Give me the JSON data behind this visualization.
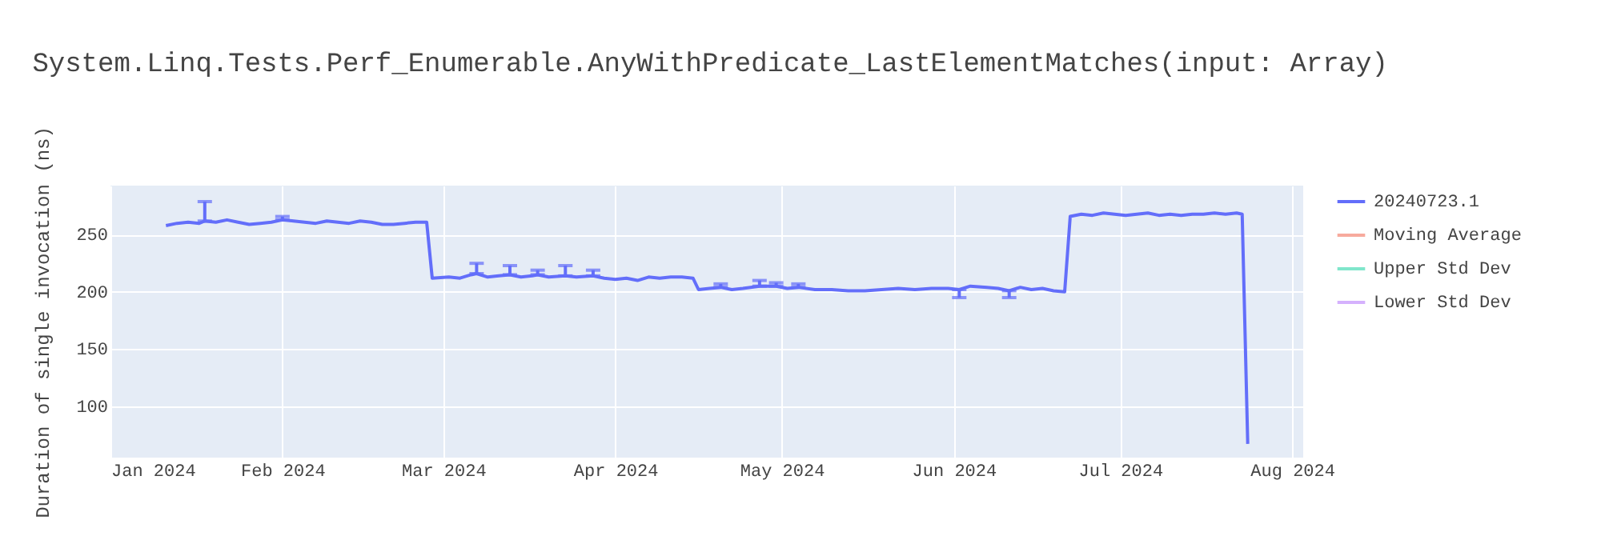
{
  "chart_data": {
    "type": "line",
    "title": "System.Linq.Tests.Perf_Enumerable.AnyWithPredicate_LastElementMatches(input: Array)",
    "ylabel": "Duration of single invocation (ns)",
    "xlim": [
      "2024-01-01",
      "2024-08-03"
    ],
    "xticks": [
      {
        "value": "2024-01-01",
        "label": "Jan 2024"
      },
      {
        "value": "2024-02-01",
        "label": "Feb 2024"
      },
      {
        "value": "2024-03-01",
        "label": "Mar 2024"
      },
      {
        "value": "2024-04-01",
        "label": "Apr 2024"
      },
      {
        "value": "2024-05-01",
        "label": "May 2024"
      },
      {
        "value": "2024-06-01",
        "label": "Jun 2024"
      },
      {
        "value": "2024-07-01",
        "label": "Jul 2024"
      },
      {
        "value": "2024-08-01",
        "label": "Aug 2024"
      }
    ],
    "ylim": [
      55,
      293
    ],
    "yticks": [
      100,
      150,
      200,
      250
    ],
    "grid": true,
    "legend": "top right",
    "marker": "none",
    "line_style": "solid",
    "x": [
      "2024-01-11",
      "2024-01-13",
      "2024-01-15",
      "2024-01-17",
      "2024-01-18",
      "2024-01-20",
      "2024-01-22",
      "2024-01-24",
      "2024-01-26",
      "2024-01-28",
      "2024-01-30",
      "2024-02-01",
      "2024-02-03",
      "2024-02-05",
      "2024-02-07",
      "2024-02-09",
      "2024-02-11",
      "2024-02-13",
      "2024-02-15",
      "2024-02-17",
      "2024-02-19",
      "2024-02-21",
      "2024-02-23",
      "2024-02-25",
      "2024-02-27",
      "2024-02-28",
      "2024-03-02",
      "2024-03-04",
      "2024-03-06",
      "2024-03-07",
      "2024-03-09",
      "2024-03-11",
      "2024-03-13",
      "2024-03-15",
      "2024-03-17",
      "2024-03-18",
      "2024-03-20",
      "2024-03-23",
      "2024-03-25",
      "2024-03-28",
      "2024-03-30",
      "2024-04-01",
      "2024-04-03",
      "2024-04-05",
      "2024-04-07",
      "2024-04-09",
      "2024-04-11",
      "2024-04-13",
      "2024-04-15",
      "2024-04-16",
      "2024-04-18",
      "2024-04-20",
      "2024-04-22",
      "2024-04-24",
      "2024-04-27",
      "2024-04-30",
      "2024-05-02",
      "2024-05-04",
      "2024-05-07",
      "2024-05-10",
      "2024-05-13",
      "2024-05-16",
      "2024-05-19",
      "2024-05-22",
      "2024-05-25",
      "2024-05-28",
      "2024-05-31",
      "2024-06-02",
      "2024-06-04",
      "2024-06-07",
      "2024-06-09",
      "2024-06-11",
      "2024-06-13",
      "2024-06-15",
      "2024-06-17",
      "2024-06-19",
      "2024-06-21",
      "2024-06-22",
      "2024-06-24",
      "2024-06-26",
      "2024-06-28",
      "2024-06-30",
      "2024-07-02",
      "2024-07-04",
      "2024-07-06",
      "2024-07-08",
      "2024-07-10",
      "2024-07-12",
      "2024-07-14",
      "2024-07-16",
      "2024-07-18",
      "2024-07-20",
      "2024-07-22",
      "2024-07-23",
      "2024-07-24"
    ],
    "series": [
      {
        "name": "20240723.1",
        "color": "#636efa",
        "values": [
          258,
          260,
          261,
          260,
          262,
          261,
          263,
          261,
          259,
          260,
          261,
          263,
          262,
          261,
          260,
          262,
          261,
          260,
          262,
          261,
          259,
          259,
          260,
          261,
          261,
          212,
          213,
          212,
          215,
          216,
          213,
          214,
          215,
          213,
          214,
          215,
          213,
          214,
          213,
          214,
          212,
          211,
          212,
          210,
          213,
          212,
          213,
          213,
          212,
          202,
          203,
          204,
          202,
          203,
          205,
          205,
          203,
          204,
          202,
          202,
          201,
          201,
          202,
          203,
          202,
          203,
          203,
          202,
          205,
          204,
          203,
          201,
          204,
          202,
          203,
          201,
          200,
          266,
          268,
          267,
          269,
          268,
          267,
          268,
          269,
          267,
          268,
          267,
          268,
          268,
          269,
          268,
          269,
          268,
          67
        ],
        "errors": [
          null,
          null,
          null,
          null,
          [
            262,
            279
          ],
          null,
          null,
          null,
          null,
          null,
          null,
          [
            263,
            266
          ],
          null,
          null,
          null,
          null,
          null,
          null,
          null,
          null,
          null,
          null,
          null,
          null,
          null,
          null,
          null,
          null,
          null,
          [
            216,
            225
          ],
          null,
          null,
          [
            215,
            223
          ],
          null,
          null,
          [
            215,
            219
          ],
          null,
          [
            214,
            223
          ],
          null,
          [
            214,
            219
          ],
          null,
          null,
          null,
          null,
          null,
          null,
          null,
          null,
          null,
          null,
          null,
          [
            204,
            207
          ],
          null,
          null,
          [
            205,
            210
          ],
          [
            205,
            208
          ],
          null,
          [
            204,
            207
          ],
          null,
          null,
          null,
          null,
          null,
          null,
          null,
          null,
          null,
          [
            195,
            202
          ],
          null,
          null,
          null,
          [
            195,
            201
          ],
          null,
          null,
          null,
          null,
          null,
          null,
          null,
          null,
          null,
          null,
          null,
          null,
          null,
          null,
          null,
          null,
          null,
          null,
          null,
          null,
          null,
          null,
          null
        ]
      },
      {
        "name": "Moving Average",
        "color": "#f7aa9d",
        "values": [
          null,
          null,
          null,
          null,
          null,
          null,
          null,
          null,
          null,
          null,
          null,
          null,
          null,
          null,
          null,
          null,
          null,
          null,
          null,
          null,
          null,
          null,
          null,
          null,
          null,
          null,
          null,
          null,
          null,
          null,
          null,
          null,
          null,
          null,
          null,
          null,
          null,
          null,
          null,
          null,
          null,
          null,
          null,
          null,
          null,
          null,
          null,
          null,
          null,
          null,
          null,
          null,
          null,
          null,
          null,
          null,
          null,
          null,
          null,
          null,
          null,
          null,
          null,
          null,
          null,
          null,
          null,
          null,
          null,
          null,
          null,
          null,
          null,
          null,
          null,
          null,
          null,
          null,
          null,
          null,
          null,
          null,
          null,
          null,
          null,
          null,
          null,
          null,
          null,
          null,
          null,
          null,
          null,
          null,
          null
        ]
      },
      {
        "name": "Upper Std Dev",
        "color": "#80e6cb",
        "values": [
          null,
          null,
          null,
          null,
          null,
          null,
          null,
          null,
          null,
          null,
          null,
          null,
          null,
          null,
          null,
          null,
          null,
          null,
          null,
          null,
          null,
          null,
          null,
          null,
          null,
          null,
          null,
          null,
          null,
          null,
          null,
          null,
          null,
          null,
          null,
          null,
          null,
          null,
          null,
          null,
          null,
          null,
          null,
          null,
          null,
          null,
          null,
          null,
          null,
          null,
          null,
          null,
          null,
          null,
          null,
          null,
          null,
          null,
          null,
          null,
          null,
          null,
          null,
          null,
          null,
          null,
          null,
          null,
          null,
          null,
          null,
          null,
          null,
          null,
          null,
          null,
          null,
          null,
          null,
          null,
          null,
          null,
          null,
          null,
          null,
          null,
          null,
          null,
          null,
          null,
          null,
          null,
          null,
          null,
          null
        ]
      },
      {
        "name": "Lower Std Dev",
        "color": "#d5b1fd",
        "values": [
          null,
          null,
          null,
          null,
          null,
          null,
          null,
          null,
          null,
          null,
          null,
          null,
          null,
          null,
          null,
          null,
          null,
          null,
          null,
          null,
          null,
          null,
          null,
          null,
          null,
          null,
          null,
          null,
          null,
          null,
          null,
          null,
          null,
          null,
          null,
          null,
          null,
          null,
          null,
          null,
          null,
          null,
          null,
          null,
          null,
          null,
          null,
          null,
          null,
          null,
          null,
          null,
          null,
          null,
          null,
          null,
          null,
          null,
          null,
          null,
          null,
          null,
          null,
          null,
          null,
          null,
          null,
          null,
          null,
          null,
          null,
          null,
          null,
          null,
          null,
          null,
          null,
          null,
          null,
          null,
          null,
          null,
          null,
          null,
          null,
          null,
          null,
          null,
          null,
          null,
          null,
          null,
          null,
          null,
          null
        ]
      }
    ]
  }
}
